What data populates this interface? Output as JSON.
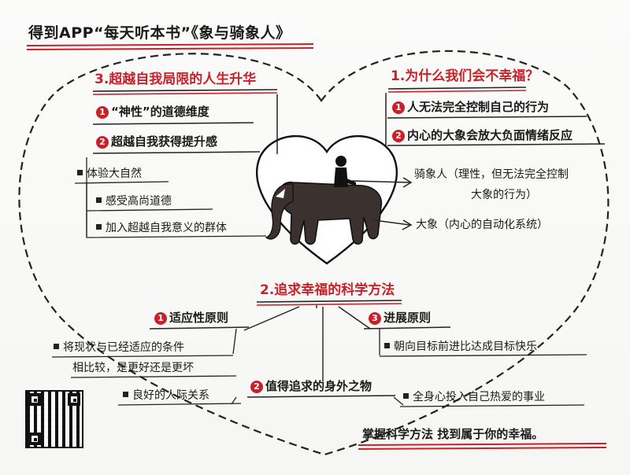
{
  "title": "得到APP“每天听本书”《象与骑象人》",
  "colors": {
    "accent_red": "#c8212a",
    "ink": "#1a1a1a",
    "elephant_brown": "#3b3230"
  },
  "right_section": {
    "heading": "1.为什么我们会不幸福？",
    "items": [
      {
        "num": "1",
        "text": "人无法完全控制自己的行为"
      },
      {
        "num": "2",
        "text": "内心的大象会放大负面情绪反应"
      }
    ]
  },
  "left_section": {
    "heading": "3.超越自我局限的人生升华",
    "items": [
      {
        "num": "1",
        "text": "“神性”的道德维度"
      },
      {
        "num": "2",
        "text": "超越自我获得提升感"
      }
    ],
    "bullets": [
      "体验大自然",
      "感受高尚道德",
      "加入超越自我意义的群体"
    ]
  },
  "center_figure": {
    "rider_line1": "骑象人（理性，但无法完全控制",
    "rider_line2": "大象的行为）",
    "elephant_label": "大象（内心的自动化系统）"
  },
  "bottom_section": {
    "heading": "2.追求幸福的科学方法",
    "branch_left": {
      "num": "1",
      "text": "适应性原则"
    },
    "branch_left_note_line1": "将现状与已经适应的条件",
    "branch_left_note_line2": "相比较，是更好还是更坏",
    "branch_right": {
      "num": "3",
      "text": "进展原则"
    },
    "branch_right_note": "朝向目标前进比达成目标快乐",
    "branch_center": {
      "num": "2",
      "text": "值得追求的身外之物"
    },
    "center_left_note": "良好的人际关系",
    "center_right_note": "全身心投入自己热爱的事业"
  },
  "footer": "掌握科学方法 找到属于你的幸福。"
}
